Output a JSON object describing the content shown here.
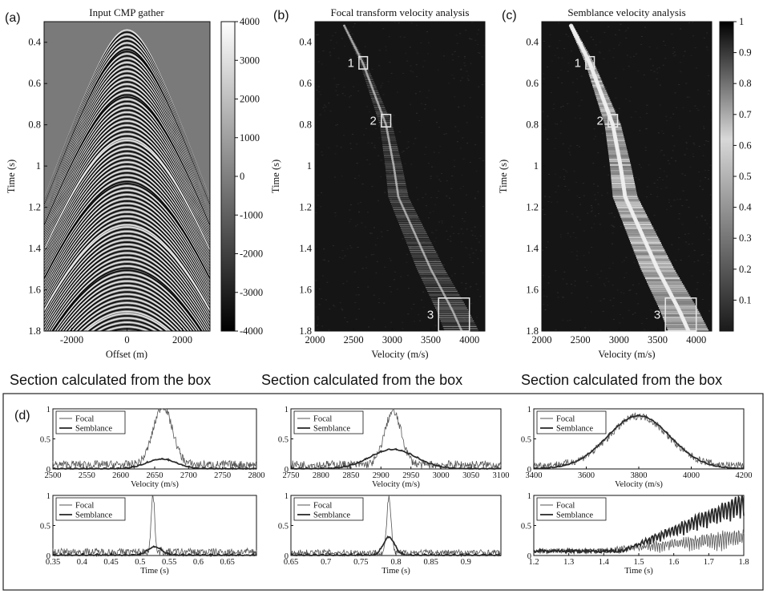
{
  "panel_labels": [
    "(a)",
    "(b)",
    "(c)",
    "(d)"
  ],
  "section_heading": "Section calculated from the box",
  "box_labels": [
    "1",
    "2",
    "3"
  ],
  "chart_data": [
    {
      "id": "a",
      "type": "heatmap",
      "title": "Input CMP gather",
      "xlabel": "Offset (m)",
      "ylabel": "Time (s)",
      "xlim": [
        -3000,
        3000
      ],
      "ylim": [
        1.8,
        0.3
      ],
      "xticks": [
        "-2000",
        "0",
        "2000"
      ],
      "yticks": [
        "0.4",
        "0.6",
        "0.8",
        "1",
        "1.2",
        "1.4",
        "1.6",
        "1.8"
      ],
      "colorbar": {
        "min": -4000,
        "max": 4000,
        "ticks": [
          "4000",
          "3000",
          "2000",
          "1000",
          "0",
          "-1000",
          "-2000",
          "-3000",
          "-4000"
        ]
      }
    },
    {
      "id": "b",
      "type": "heatmap",
      "title": "Focal transform velocity analysis",
      "xlabel": "Velocity (m/s)",
      "ylabel": "Time (s)",
      "xlim": [
        2000,
        4200
      ],
      "ylim": [
        1.8,
        0.3
      ],
      "xticks": [
        "2000",
        "2500",
        "3000",
        "3500",
        "4000"
      ],
      "yticks": [
        "0.4",
        "0.6",
        "0.8",
        "1",
        "1.2",
        "1.4",
        "1.6",
        "1.8"
      ],
      "boxes": [
        {
          "label": "1",
          "v": [
            2570,
            2680
          ],
          "t": [
            0.47,
            0.53
          ]
        },
        {
          "label": "2",
          "v": [
            2860,
            2980
          ],
          "t": [
            0.75,
            0.81
          ]
        },
        {
          "label": "3",
          "v": [
            3600,
            4000
          ],
          "t": [
            1.64,
            1.8
          ]
        }
      ]
    },
    {
      "id": "c",
      "type": "heatmap",
      "title": "Semblance velocity analysis",
      "xlabel": "Velocity (m/s)",
      "ylabel": "Time (s)",
      "xlim": [
        2000,
        4200
      ],
      "ylim": [
        1.8,
        0.3
      ],
      "xticks": [
        "2000",
        "2500",
        "3000",
        "3500",
        "4000"
      ],
      "yticks": [
        "0.4",
        "0.6",
        "0.8",
        "1",
        "1.2",
        "1.4",
        "1.6",
        "1.8"
      ],
      "colorbar": {
        "min": 0,
        "max": 1,
        "ticks": [
          "1",
          "0.9",
          "0.8",
          "0.7",
          "0.6",
          "0.5",
          "0.4",
          "0.3",
          "0.2",
          "0.1"
        ]
      },
      "boxes": [
        {
          "label": "1",
          "v": [
            2570,
            2680
          ],
          "t": [
            0.47,
            0.53
          ]
        },
        {
          "label": "2",
          "v": [
            2860,
            2980
          ],
          "t": [
            0.75,
            0.81
          ]
        },
        {
          "label": "3",
          "v": [
            3600,
            4000
          ],
          "t": [
            1.64,
            1.8
          ]
        }
      ]
    },
    {
      "id": "d1-velocity",
      "type": "line",
      "xlabel": "Velocity (m/s)",
      "xlim": [
        2500,
        2800
      ],
      "ylim": [
        0,
        1
      ],
      "xticks": [
        "2500",
        "2550",
        "2600",
        "2650",
        "2700",
        "2750",
        "2800"
      ],
      "yticks": [
        "0",
        "0.5",
        "1"
      ],
      "legend": "top-left",
      "series": [
        {
          "name": "Focal",
          "peak": 2662,
          "height": 0.98,
          "width": 14,
          "noise": 0.14
        },
        {
          "name": "Semblance",
          "peak": 2660,
          "height": 0.16,
          "width": 22,
          "noise": 0.02
        }
      ]
    },
    {
      "id": "d2-velocity",
      "type": "line",
      "xlabel": "Velocity (m/s)",
      "xlim": [
        2750,
        3100
      ],
      "ylim": [
        0,
        1
      ],
      "xticks": [
        "2750",
        "2800",
        "2850",
        "2900",
        "2950",
        "3000",
        "3050",
        "3100"
      ],
      "yticks": [
        "0",
        "0.5",
        "1"
      ],
      "legend": "top-left",
      "series": [
        {
          "name": "Focal",
          "peak": 2920,
          "height": 0.88,
          "width": 14,
          "noise": 0.14
        },
        {
          "name": "Semblance",
          "peak": 2920,
          "height": 0.32,
          "width": 38,
          "noise": 0.02
        }
      ]
    },
    {
      "id": "d3-velocity",
      "type": "line",
      "xlabel": "Velocity (m/s)",
      "xlim": [
        3400,
        4200
      ],
      "ylim": [
        0,
        1
      ],
      "xticks": [
        "3400",
        "3600",
        "3800",
        "4000",
        "4200"
      ],
      "yticks": [
        "0",
        "0.5",
        "1"
      ],
      "legend": "top-left",
      "series": [
        {
          "name": "Focal",
          "peak": 3800,
          "height": 0.82,
          "width": 110,
          "noise": 0.12
        },
        {
          "name": "Semblance",
          "peak": 3800,
          "height": 0.88,
          "width": 120,
          "noise": 0.02
        }
      ]
    },
    {
      "id": "d1-time",
      "type": "line",
      "xlabel": "Time (s)",
      "xlim": [
        0.35,
        0.7
      ],
      "ylim": [
        0,
        1
      ],
      "xticks": [
        "0.35",
        "0.4",
        "0.45",
        "0.5",
        "0.55",
        "0.6",
        "0.65"
      ],
      "yticks": [
        "0",
        "0.5",
        "1"
      ],
      "legend": "top-left",
      "series": [
        {
          "name": "Focal",
          "peak": 0.522,
          "height": 0.95,
          "width": 0.003,
          "noise": 0.12
        },
        {
          "name": "Semblance",
          "peak": 0.525,
          "height": 0.14,
          "width": 0.012,
          "noise": 0.03
        }
      ]
    },
    {
      "id": "d2-time",
      "type": "line",
      "xlabel": "Time (s)",
      "xlim": [
        0.65,
        0.95
      ],
      "ylim": [
        0,
        1
      ],
      "xticks": [
        "0.65",
        "0.7",
        "0.75",
        "0.8",
        "0.85",
        "0.9"
      ],
      "yticks": [
        "0",
        "0.5",
        "1"
      ],
      "legend": "top-left",
      "series": [
        {
          "name": "Focal",
          "peak": 0.79,
          "height": 0.92,
          "width": 0.003,
          "noise": 0.1
        },
        {
          "name": "Semblance",
          "peak": 0.79,
          "height": 0.3,
          "width": 0.008,
          "noise": 0.03
        }
      ]
    },
    {
      "id": "d3-time",
      "type": "line",
      "xlabel": "Time (s)",
      "xlim": [
        1.2,
        1.8
      ],
      "ylim": [
        0,
        1
      ],
      "xticks": [
        "1.2",
        "1.3",
        "1.4",
        "1.5",
        "1.6",
        "1.7",
        "1.8"
      ],
      "yticks": [
        "0",
        "0.5",
        "1"
      ],
      "legend": "top-left",
      "series": [
        {
          "name": "Focal",
          "peak": 1.72,
          "height": 0.45,
          "width": 0.06,
          "noise": 0.15
        },
        {
          "name": "Semblance",
          "peak": 1.72,
          "height": 0.95,
          "width": 0.08,
          "noise": 0.05
        }
      ]
    }
  ]
}
